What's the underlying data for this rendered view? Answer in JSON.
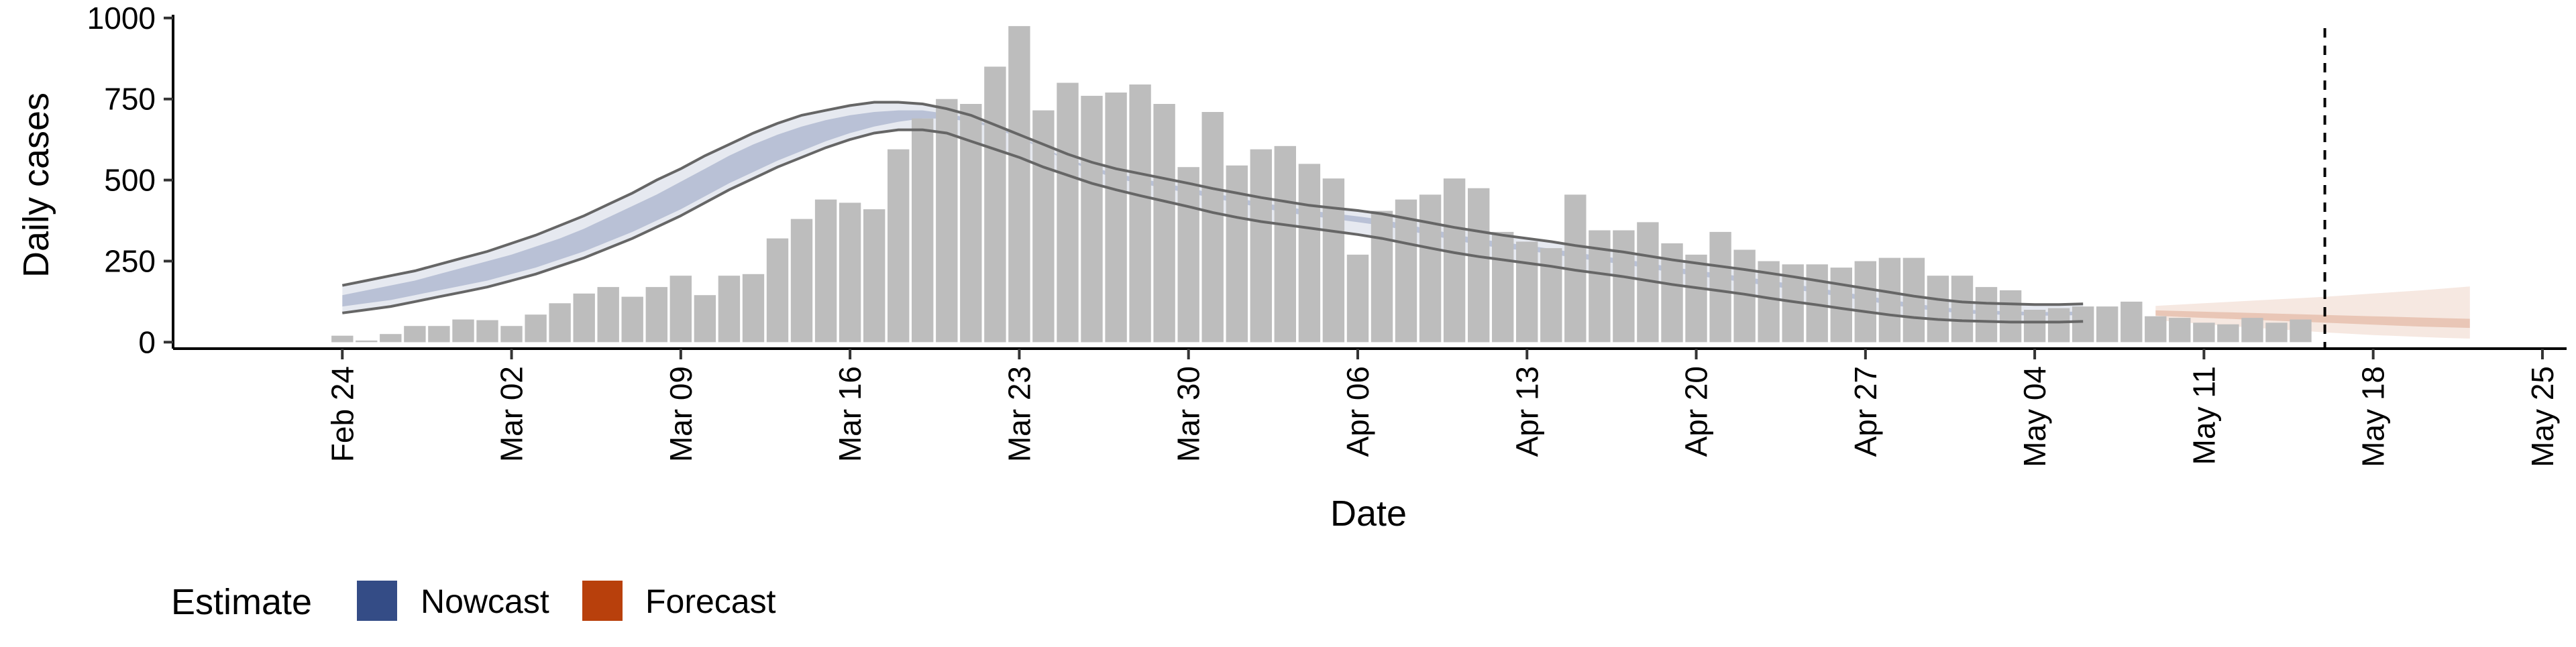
{
  "chart_data": {
    "type": "bar",
    "title": "",
    "xlabel": "Date",
    "ylabel": "Daily cases",
    "ylim": [
      -20,
      1010
    ],
    "y_ticks": [
      0,
      250,
      500,
      750,
      1000
    ],
    "x_tick_labels": [
      "Feb 24",
      "Mar 02",
      "Mar 09",
      "Mar 16",
      "Mar 23",
      "Mar 30",
      "Apr 06",
      "Apr 13",
      "Apr 20",
      "Apr 27",
      "May 04",
      "May 11",
      "May 18",
      "May 25"
    ],
    "x_tick_dates": [
      "2020-02-24",
      "2020-03-02",
      "2020-03-09",
      "2020-03-16",
      "2020-03-23",
      "2020-03-30",
      "2020-04-06",
      "2020-04-13",
      "2020-04-20",
      "2020-04-27",
      "2020-05-04",
      "2020-05-11",
      "2020-05-18",
      "2020-05-25"
    ],
    "xlim": [
      "2020-02-17",
      "2020-05-26"
    ],
    "grid": false,
    "legend": {
      "title": "Estimate",
      "position": "bottom-left",
      "entries": [
        {
          "label": "Nowcast",
          "color": "#344C86"
        },
        {
          "label": "Forecast",
          "color": "#B8400C"
        }
      ]
    },
    "vline_date": "2020-05-16",
    "bar_color": "#BDBDBD",
    "observed_cases": {
      "start_date": "2020-02-24",
      "values": [
        20,
        5,
        25,
        50,
        50,
        70,
        68,
        50,
        85,
        120,
        150,
        170,
        140,
        170,
        205,
        145,
        205,
        210,
        320,
        380,
        440,
        430,
        410,
        595,
        690,
        750,
        735,
        850,
        975,
        715,
        800,
        760,
        770,
        795,
        735,
        540,
        710,
        545,
        595,
        605,
        550,
        505,
        270,
        405,
        440,
        455,
        505,
        475,
        340,
        310,
        290,
        455,
        345,
        345,
        370,
        305,
        270,
        340,
        285,
        250,
        240,
        240,
        230,
        250,
        260,
        260,
        205,
        205,
        170,
        160,
        100,
        105,
        110,
        110,
        125,
        80,
        75,
        60,
        55,
        75,
        60,
        70
      ]
    },
    "series": [
      {
        "name": "Nowcast",
        "color": "#344C86",
        "start_date": "2020-02-24",
        "inner_band_lower": [
          110,
          120,
          130,
          145,
          160,
          175,
          190,
          210,
          230,
          255,
          280,
          310,
          340,
          375,
          410,
          450,
          490,
          525,
          560,
          590,
          620,
          645,
          665,
          680,
          690,
          690,
          680,
          660,
          630,
          595,
          560,
          530,
          505,
          490,
          475,
          460,
          445,
          430,
          415,
          400,
          390,
          380,
          370,
          360,
          345,
          330,
          315,
          300,
          290,
          282,
          272,
          260,
          250,
          240,
          228,
          215,
          205,
          195,
          185,
          174,
          163,
          152,
          140,
          128,
          116,
          105,
          96,
          89,
          86,
          84,
          82,
          82,
          84
        ],
        "inner_band_upper": [
          145,
          160,
          175,
          190,
          210,
          230,
          250,
          270,
          295,
          320,
          350,
          385,
          420,
          455,
          495,
          535,
          575,
          610,
          640,
          665,
          685,
          700,
          710,
          715,
          715,
          705,
          690,
          665,
          635,
          600,
          565,
          540,
          520,
          505,
          490,
          475,
          460,
          445,
          430,
          418,
          406,
          397,
          388,
          378,
          363,
          348,
          333,
          318,
          308,
          298,
          288,
          276,
          266,
          256,
          244,
          231,
          221,
          211,
          201,
          190,
          179,
          167,
          155,
          143,
          131,
          119,
          109,
          101,
          97,
          95,
          93,
          93,
          95
        ],
        "outer_band_lower": [
          90,
          100,
          110,
          125,
          140,
          155,
          170,
          190,
          210,
          235,
          260,
          290,
          320,
          355,
          390,
          430,
          470,
          505,
          540,
          570,
          600,
          625,
          645,
          655,
          655,
          645,
          620,
          595,
          570,
          540,
          515,
          490,
          470,
          452,
          435,
          418,
          400,
          385,
          372,
          362,
          352,
          342,
          332,
          320,
          305,
          290,
          276,
          264,
          254,
          244,
          234,
          222,
          212,
          202,
          190,
          178,
          168,
          158,
          148,
          136,
          125,
          115,
          104,
          94,
          84,
          76,
          70,
          66,
          64,
          62,
          62,
          62,
          64
        ],
        "outer_band_upper": [
          175,
          190,
          205,
          220,
          240,
          260,
          280,
          305,
          330,
          360,
          390,
          425,
          460,
          500,
          535,
          575,
          610,
          645,
          675,
          700,
          715,
          730,
          740,
          740,
          735,
          720,
          700,
          670,
          640,
          610,
          580,
          555,
          535,
          520,
          505,
          490,
          474,
          460,
          446,
          434,
          422,
          414,
          406,
          396,
          382,
          368,
          354,
          342,
          330,
          320,
          310,
          298,
          288,
          278,
          266,
          254,
          244,
          234,
          224,
          213,
          202,
          190,
          178,
          166,
          154,
          142,
          132,
          124,
          120,
          118,
          116,
          116,
          118
        ]
      },
      {
        "name": "Forecast",
        "color": "#B8400C",
        "start_date": "2020-05-09",
        "inner_band_lower": [
          82,
          78,
          75,
          72,
          69,
          66,
          63,
          60,
          57,
          54,
          51,
          48,
          46,
          44
        ],
        "inner_band_upper": [
          98,
          96,
          94,
          92,
          90,
          88,
          86,
          84,
          82,
          80,
          78,
          76,
          74,
          72
        ],
        "outer_band_lower": [
          68,
          62,
          56,
          50,
          45,
          40,
          35,
          30,
          26,
          22,
          19,
          16,
          13,
          11
        ],
        "outer_band_upper": [
          112,
          116,
          120,
          124,
          128,
          132,
          136,
          140,
          145,
          150,
          155,
          160,
          166,
          172
        ]
      }
    ]
  }
}
